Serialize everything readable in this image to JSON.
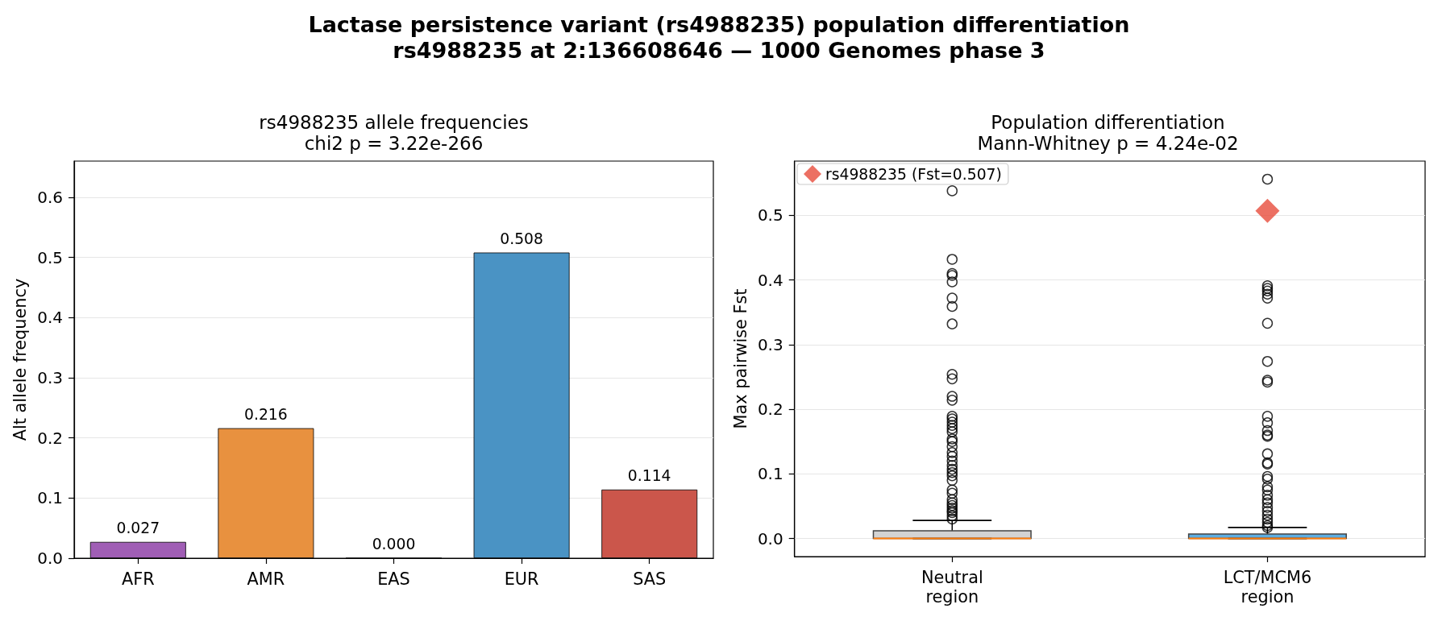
{
  "chart_data": [
    {
      "type": "bar",
      "title": "rs4988235 allele frequencies",
      "subtitle": "chi2 p = 3.22e-266",
      "ylabel": "Alt allele frequency",
      "categories": [
        "AFR",
        "AMR",
        "EAS",
        "EUR",
        "SAS"
      ],
      "values": [
        0.027,
        0.216,
        0.0,
        0.508,
        0.114
      ],
      "colors": [
        "#a05eb5",
        "#e8913f",
        null,
        "#4a93c4",
        "#cb564b"
      ],
      "value_labels": [
        "0.027",
        "0.216",
        "0.000",
        "0.508",
        "0.114"
      ],
      "ylim": [
        0,
        0.66
      ],
      "yticks": [
        {
          "value": 0,
          "label": "0.0"
        },
        0.1,
        0.2,
        0.3,
        0.4,
        0.5,
        0.6
      ],
      "grid": "y",
      "annotations": [
        "Lactase persistence variant (rs4988235) population differentiation",
        "rs4988235 at 2:136608646 — 1000 Genomes phase 3"
      ]
    },
    {
      "type": "box",
      "title": "Population differentiation",
      "subtitle": "Mann-Whitney p = 4.24e-02",
      "ylabel": "Max pairwise Fst",
      "categories": [
        "Neutral\nregion",
        "LCT/MCM6\nregion"
      ],
      "series": [
        {
          "colors": [
            "#d3d3d3",
            "#5dade2"
          ],
          "boxes": [
            {
              "low": 0,
              "q1": 0,
              "median": 0,
              "q3": 0.012,
              "high": 0.028,
              "outliers": [
                0.538,
                0.432,
                0.41,
                0.407,
                0.397,
                0.372,
                0.359,
                0.332,
                0.254,
                0.247,
                0.22,
                0.214,
                0.189,
                0.185,
                0.18,
                0.175,
                0.17,
                0.165,
                0.154,
                0.15,
                0.142,
                0.133,
                0.127,
                0.12,
                0.113,
                0.107,
                0.102,
                0.097,
                0.09,
                0.075,
                0.07,
                0.06,
                0.055,
                0.051,
                0.047,
                0.043,
                0.04,
                0.035,
                0.03
              ]
            },
            {
              "low": 0,
              "q1": 0,
              "median": 0,
              "q3": 0.007,
              "high": 0.017,
              "outliers": [
                0.556,
                0.391,
                0.387,
                0.383,
                0.378,
                0.372,
                0.333,
                0.274,
                0.245,
                0.242,
                0.189,
                0.179,
                0.167,
                0.16,
                0.158,
                0.131,
                0.117,
                0.115,
                0.096,
                0.092,
                0.08,
                0.075,
                0.067,
                0.06,
                0.055,
                0.048,
                0.042,
                0.036,
                0.03,
                0.025,
                0.02,
                0.017
              ]
            }
          ]
        },
        {
          "type": "scatter",
          "name": "rs4988235 (Fst=0.507)",
          "color": "#e74c3c",
          "marker": "diamond",
          "x": [
            "LCT/MCM6\nregion"
          ],
          "values": [
            0.507
          ]
        }
      ],
      "ylim": [
        -0.028,
        0.584
      ],
      "yticks": [
        {
          "value": 0,
          "label": "0.0"
        },
        0.1,
        0.2,
        0.3,
        0.4,
        0.5
      ],
      "grid": "y",
      "legend": "top left"
    }
  ]
}
